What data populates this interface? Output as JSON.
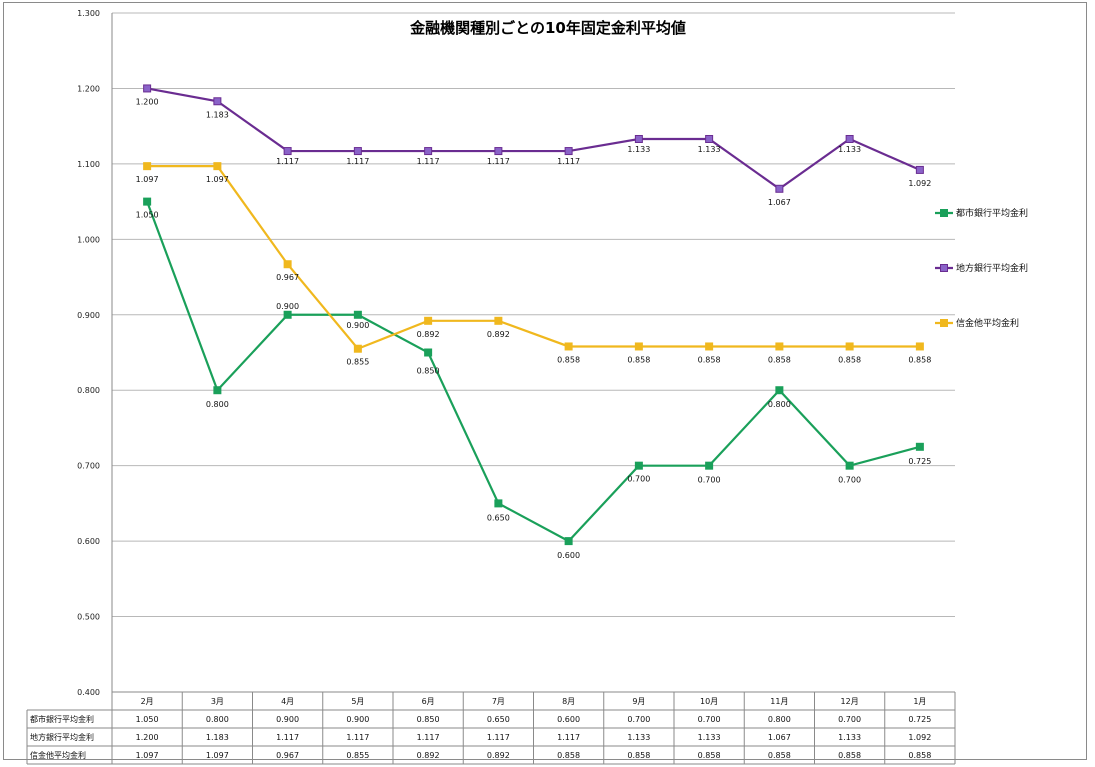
{
  "chart_data": {
    "type": "line",
    "title": "金融機関種別ごとの10年固定金利平均値",
    "categories": [
      "2月",
      "3月",
      "4月",
      "5月",
      "6月",
      "7月",
      "8月",
      "9月",
      "10月",
      "11月",
      "12月",
      "1月"
    ],
    "ylim": [
      0.4,
      1.3
    ],
    "yticks": [
      "0.400",
      "0.500",
      "0.600",
      "0.700",
      "0.800",
      "0.900",
      "1.000",
      "1.100",
      "1.200",
      "1.300"
    ],
    "grid": true,
    "legend_position": "right",
    "series": [
      {
        "name": "都市銀行平均金利",
        "color": "#1aa05a",
        "marker": "#1aa05a",
        "values": [
          1.05,
          0.8,
          0.9,
          0.9,
          0.85,
          0.65,
          0.6,
          0.7,
          0.7,
          0.8,
          0.7,
          0.725
        ],
        "labels": [
          "1.050",
          "0.800",
          "0.900",
          "0.900",
          "0.850",
          "0.650",
          "0.600",
          "0.700",
          "0.700",
          "0.800",
          "0.700",
          "0.725"
        ]
      },
      {
        "name": "地方銀行平均金利",
        "color": "#6a2c91",
        "marker": "#8a63c8",
        "values": [
          1.2,
          1.183,
          1.117,
          1.117,
          1.117,
          1.117,
          1.117,
          1.133,
          1.133,
          1.067,
          1.133,
          1.092
        ],
        "labels": [
          "1.200",
          "1.183",
          "1.117",
          "1.117",
          "1.117",
          "1.117",
          "1.117",
          "1.133",
          "1.133",
          "1.067",
          "1.133",
          "1.092"
        ]
      },
      {
        "name": "信金他平均金利",
        "color": "#f0b81e",
        "marker": "#f0b81e",
        "values": [
          1.097,
          1.097,
          0.967,
          0.855,
          0.892,
          0.892,
          0.858,
          0.858,
          0.858,
          0.858,
          0.858,
          0.858
        ],
        "labels": [
          "1.097",
          "1.097",
          "0.967",
          "0.855",
          "0.892",
          "0.892",
          "0.858",
          "0.858",
          "0.858",
          "0.858",
          "0.858",
          "0.858"
        ]
      }
    ]
  }
}
